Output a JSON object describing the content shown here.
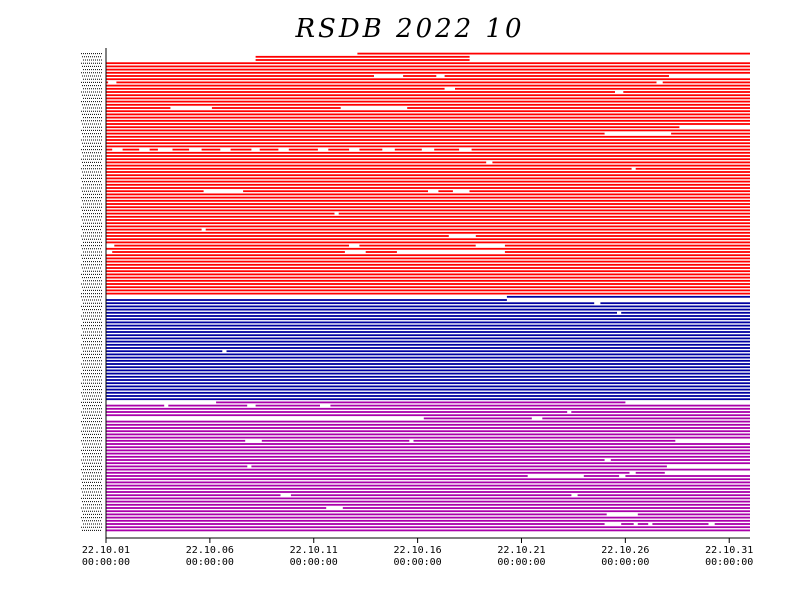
{
  "chart_data": {
    "type": "timeline",
    "title": "RSDB  2022  10",
    "x_ticks": [
      {
        "date": "22.10.01",
        "time": "00:00:00",
        "day": 1
      },
      {
        "date": "22.10.06",
        "time": "00:00:00",
        "day": 6
      },
      {
        "date": "22.10.11",
        "time": "00:00:00",
        "day": 11
      },
      {
        "date": "22.10.16",
        "time": "00:00:00",
        "day": 16
      },
      {
        "date": "22.10.21",
        "time": "00:00:00",
        "day": 21
      },
      {
        "date": "22.10.26",
        "time": "00:00:00",
        "day": 26
      },
      {
        "date": "22.10.31",
        "time": "00:00:00",
        "day": 31
      }
    ],
    "xlim_days": [
      1,
      32
    ],
    "groups": [
      {
        "color": "#ff0000",
        "row_count": 76,
        "rows": [
          {
            "row": 0,
            "start": 13.1,
            "end": 32,
            "gaps": []
          },
          {
            "row": 1,
            "start": 8.2,
            "end": 18.5,
            "gaps": []
          },
          {
            "row": 2,
            "start": 8.2,
            "end": 18.5,
            "gaps": []
          },
          {
            "row": 3,
            "start": 1,
            "end": 32,
            "gaps": []
          },
          {
            "row": 7,
            "start": 1,
            "end": 32,
            "gaps": [
              [
                13.9,
                15.3
              ],
              [
                16.9,
                17.3
              ],
              [
                28.1,
                32
              ]
            ]
          },
          {
            "row": 9,
            "start": 1,
            "end": 32,
            "gaps": [
              [
                1.1,
                1.5
              ],
              [
                27.5,
                27.8
              ]
            ]
          },
          {
            "row": 11,
            "start": 1,
            "end": 32,
            "gaps": [
              [
                17.3,
                17.8
              ]
            ]
          },
          {
            "row": 12,
            "start": 1,
            "end": 32,
            "gaps": [
              [
                25.5,
                25.9
              ]
            ]
          },
          {
            "row": 17,
            "start": 1,
            "end": 32,
            "gaps": [
              [
                4.1,
                6.1
              ],
              [
                12.3,
                15.5
              ]
            ]
          },
          {
            "row": 23,
            "start": 1,
            "end": 32,
            "gaps": [
              [
                28.6,
                32
              ]
            ]
          },
          {
            "row": 25,
            "start": 1,
            "end": 32,
            "gaps": [
              [
                25.0,
                28.2
              ]
            ]
          },
          {
            "row": 30,
            "start": 1,
            "end": 32,
            "gaps": [
              [
                1.3,
                1.8
              ],
              [
                2.6,
                3.1
              ],
              [
                3.5,
                4.2
              ],
              [
                5.0,
                5.6
              ],
              [
                6.5,
                7.0
              ],
              [
                8.0,
                8.4
              ],
              [
                9.3,
                9.8
              ],
              [
                11.2,
                11.7
              ],
              [
                12.7,
                13.2
              ],
              [
                14.3,
                14.9
              ],
              [
                16.2,
                16.8
              ],
              [
                18.0,
                18.6
              ]
            ]
          },
          {
            "row": 34,
            "start": 1,
            "end": 32,
            "gaps": [
              [
                19.3,
                19.6
              ]
            ]
          },
          {
            "row": 36,
            "start": 1,
            "end": 32,
            "gaps": [
              [
                26.3,
                26.5
              ]
            ]
          },
          {
            "row": 43,
            "start": 1,
            "end": 32,
            "gaps": [
              [
                5.7,
                7.6
              ],
              [
                16.5,
                17.0
              ],
              [
                17.7,
                18.5
              ]
            ]
          },
          {
            "row": 47,
            "start": 1,
            "end": 32,
            "gaps": []
          },
          {
            "row": 50,
            "start": 1,
            "end": 32,
            "gaps": [
              [
                12.0,
                12.2
              ]
            ]
          },
          {
            "row": 55,
            "start": 1,
            "end": 32,
            "gaps": [
              [
                5.6,
                5.8
              ]
            ]
          },
          {
            "row": 57,
            "start": 1,
            "end": 32,
            "gaps": [
              [
                17.5,
                18.8
              ]
            ]
          },
          {
            "row": 60,
            "start": 1,
            "end": 32,
            "gaps": [
              [
                1.0,
                1.4
              ],
              [
                12.7,
                13.2
              ],
              [
                18.8,
                20.2
              ]
            ]
          },
          {
            "row": 62,
            "start": 1,
            "end": 32,
            "gaps": [
              [
                1.0,
                1.3
              ],
              [
                12.5,
                13.5
              ],
              [
                15.0,
                20.2
              ]
            ]
          }
        ]
      },
      {
        "color": "#0000a0",
        "row_count": 33,
        "rows": [
          {
            "row": 0,
            "start": 20.3,
            "end": 32,
            "gaps": []
          },
          {
            "row": 1,
            "start": 1,
            "end": 32,
            "gaps": [
              [
                20.3,
                32
              ]
            ]
          },
          {
            "row": 2,
            "start": 1,
            "end": 32,
            "gaps": [
              [
                24.5,
                24.8
              ]
            ]
          },
          {
            "row": 5,
            "start": 1,
            "end": 32,
            "gaps": [
              [
                25.6,
                25.8
              ]
            ]
          },
          {
            "row": 17,
            "start": 1,
            "end": 32,
            "gaps": [
              [
                6.6,
                6.8
              ]
            ]
          }
        ]
      },
      {
        "color": "#aa00aa",
        "row_count": 41,
        "rows": [
          {
            "row": 0,
            "start": 1,
            "end": 32,
            "gaps": [
              [
                1,
                6.3
              ],
              [
                26.0,
                32
              ]
            ]
          },
          {
            "row": 1,
            "start": 1,
            "end": 32,
            "gaps": [
              [
                3.8,
                4.0
              ],
              [
                7.8,
                8.2
              ],
              [
                11.3,
                11.8
              ]
            ]
          },
          {
            "row": 3,
            "start": 1,
            "end": 32,
            "gaps": [
              [
                23.2,
                23.4
              ]
            ]
          },
          {
            "row": 5,
            "start": 1,
            "end": 32,
            "gaps": [
              [
                1,
                16.3
              ],
              [
                21.5,
                22.0
              ]
            ]
          },
          {
            "row": 12,
            "start": 1,
            "end": 32,
            "gaps": [
              [
                7.7,
                8.5
              ],
              [
                15.6,
                15.8
              ],
              [
                28.4,
                32
              ]
            ]
          },
          {
            "row": 18,
            "start": 1,
            "end": 32,
            "gaps": [
              [
                25.0,
                25.3
              ]
            ]
          },
          {
            "row": 20,
            "start": 1,
            "end": 32,
            "gaps": [
              [
                7.8,
                8.0
              ],
              [
                28.0,
                32
              ]
            ]
          },
          {
            "row": 22,
            "start": 1,
            "end": 32,
            "gaps": [
              [
                26.2,
                26.5
              ],
              [
                27.9,
                32
              ]
            ]
          },
          {
            "row": 23,
            "start": 1,
            "end": 32,
            "gaps": [
              [
                21.3,
                24.0
              ],
              [
                25.7,
                26.0
              ]
            ]
          },
          {
            "row": 29,
            "start": 1,
            "end": 32,
            "gaps": [
              [
                9.4,
                9.9
              ],
              [
                23.4,
                23.7
              ]
            ]
          },
          {
            "row": 33,
            "start": 1,
            "end": 32,
            "gaps": [
              [
                11.6,
                12.4
              ]
            ]
          },
          {
            "row": 35,
            "start": 1,
            "end": 32,
            "gaps": [
              [
                25.1,
                26.6
              ]
            ]
          },
          {
            "row": 38,
            "start": 1,
            "end": 32,
            "gaps": [
              [
                25.0,
                25.8
              ],
              [
                26.4,
                26.6
              ],
              [
                27.1,
                27.3
              ],
              [
                30.0,
                30.3
              ]
            ]
          }
        ]
      }
    ]
  }
}
